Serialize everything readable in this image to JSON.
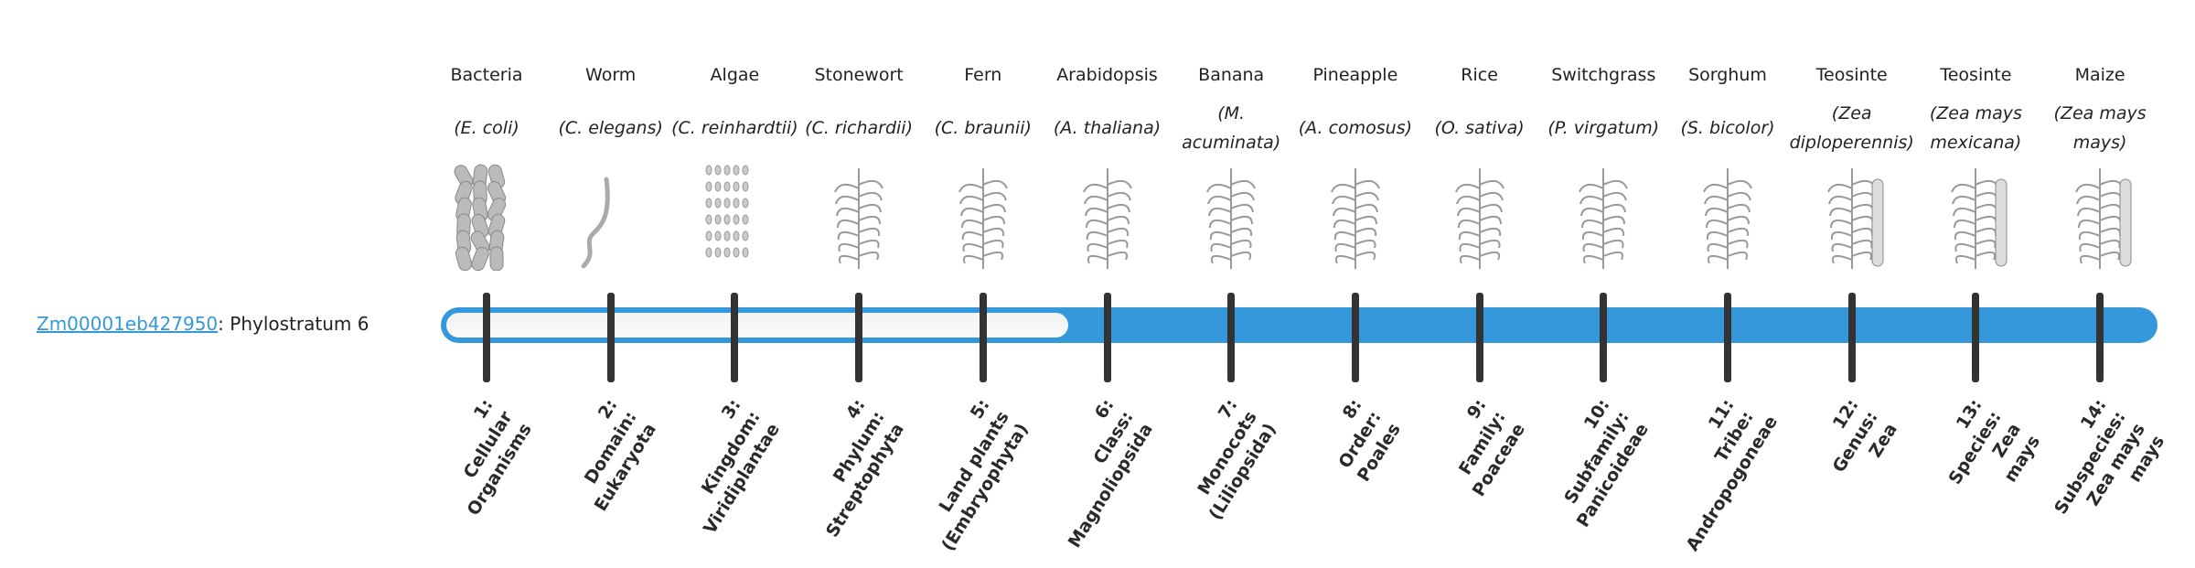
{
  "gene": {
    "id": "Zm00001eb427950",
    "suffix": ": Phylostratum 6",
    "phylostratum": 6
  },
  "colors": {
    "accent": "#3498db",
    "tick": "#333333",
    "empty": "#f4f4f4"
  },
  "columns": [
    {
      "common": "Bacteria",
      "species": "(E. coli)",
      "icon": "bacteria-illustration",
      "stratum": "1:\nCellular\nOrganisms"
    },
    {
      "common": "Worm",
      "species": "(C. elegans)",
      "icon": "worm-illustration",
      "stratum": "2:\nDomain:\nEukaryota"
    },
    {
      "common": "Algae",
      "species": "(C. reinhardtii)",
      "icon": "algae-illustration",
      "stratum": "3:\nKingdom:\nViridiplantae"
    },
    {
      "common": "Stonewort",
      "species": "(C. richardii)",
      "icon": "stonewort-illustration",
      "stratum": "4:\nPhylum:\nStreptophyta"
    },
    {
      "common": "Fern",
      "species": "(C. braunii)",
      "icon": "fern-illustration",
      "stratum": "5:\nLand plants\n(Embryophyta)"
    },
    {
      "common": "Arabidopsis",
      "species": "(A. thaliana)",
      "icon": "arabidopsis-illustration",
      "stratum": "6:\nClass:\nMagnoliopsida"
    },
    {
      "common": "Banana",
      "species": "(M. acuminata)",
      "icon": "banana-illustration",
      "stratum": "7:\nMonocots\n(Liliopsida)"
    },
    {
      "common": "Pineapple",
      "species": "(A. comosus)",
      "icon": "pineapple-illustration",
      "stratum": "8:\nOrder:\nPoales"
    },
    {
      "common": "Rice",
      "species": "(O. sativa)",
      "icon": "rice-illustration",
      "stratum": "9:\nFamily:\nPoaceae"
    },
    {
      "common": "Switchgrass",
      "species": "(P. virgatum)",
      "icon": "switchgrass-illustration",
      "stratum": "10:\nSubfamily:\nPanicoideae"
    },
    {
      "common": "Sorghum",
      "species": "(S. bicolor)",
      "icon": "sorghum-illustration",
      "stratum": "11:\nTribe:\nAndropogoneae"
    },
    {
      "common": "Teosinte",
      "species": "(Zea diploperennis)",
      "icon": "teosinte-illustration",
      "stratum": "12:\nGenus:\nZea"
    },
    {
      "common": "Teosinte",
      "species": "(Zea mays mexicana)",
      "icon": "teosinte-mexicana-illustration",
      "stratum": "13:\nSpecies:\nZea\nmays"
    },
    {
      "common": "Maize",
      "species": "(Zea mays mays)",
      "icon": "maize-illustration",
      "stratum": "14:\nSubspecies:\nZea mays\nmays"
    }
  ]
}
